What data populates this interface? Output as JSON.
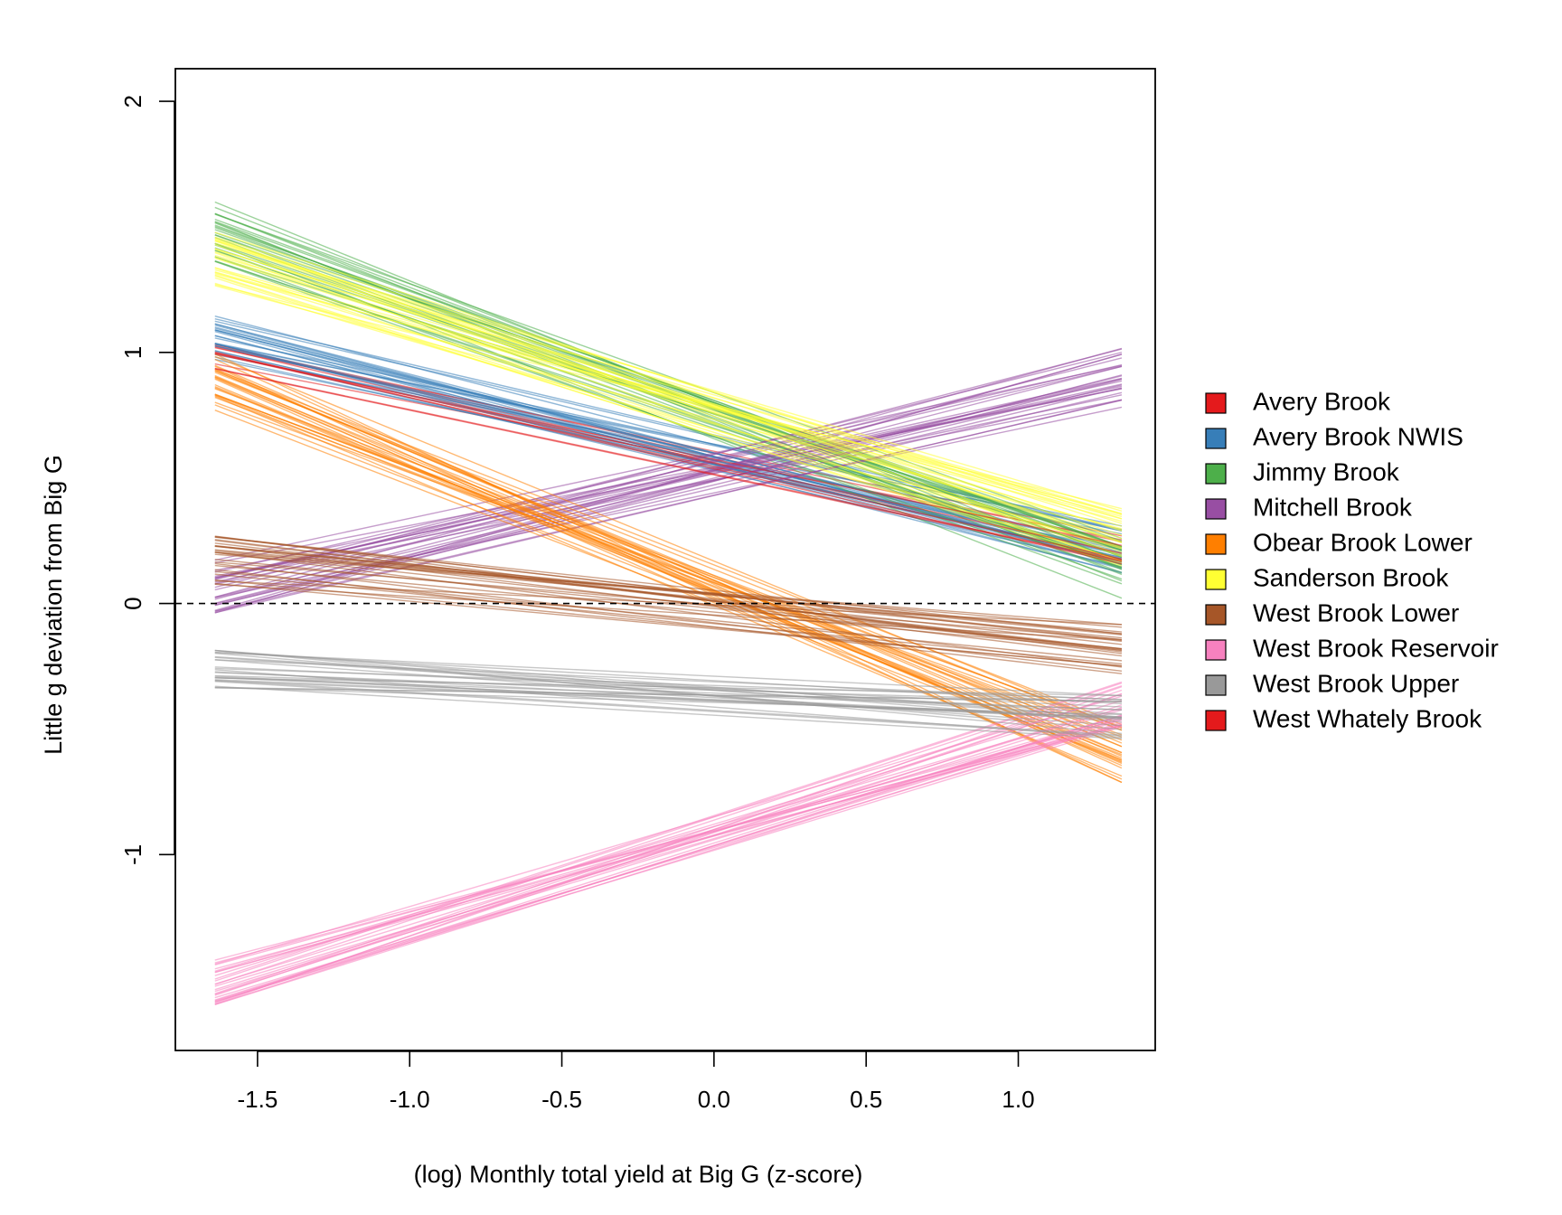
{
  "chart_data": {
    "type": "line",
    "xlabel": "(log) Monthly total yield at Big G (z-score)",
    "ylabel": "Little g deviation from Big G",
    "xlim": [
      -1.77,
      1.45
    ],
    "ylim": [
      -1.78,
      2.13
    ],
    "x_ticks": [
      "-1.5",
      "-1.0",
      "-0.5",
      "0.0",
      "0.5",
      "1.0"
    ],
    "x_tick_values": [
      -1.5,
      -1.0,
      -0.5,
      0.0,
      0.5,
      1.0
    ],
    "y_ticks": [
      "-1",
      "0",
      "1",
      "2"
    ],
    "y_tick_values": [
      -1,
      0,
      1,
      2
    ],
    "x_range": [
      -1.64,
      1.34
    ],
    "reference_line": {
      "y": 0,
      "style": "dashed"
    },
    "grid": false,
    "legend_position": "right",
    "series": [
      {
        "name": "Avery Brook",
        "color": "#E41A1C",
        "y_start": 1.0,
        "y_end": 0.2,
        "spread": 0.07,
        "draws": 6
      },
      {
        "name": "Avery Brook NWIS",
        "color": "#377EB8",
        "y_start": 1.05,
        "y_end": 0.22,
        "spread": 0.1,
        "draws": 28
      },
      {
        "name": "Jimmy Brook",
        "color": "#4DAF4A",
        "y_start": 1.48,
        "y_end": 0.14,
        "spread": 0.12,
        "draws": 28
      },
      {
        "name": "Mitchell Brook",
        "color": "#984EA3",
        "y_start": 0.06,
        "y_end": 0.9,
        "spread": 0.12,
        "draws": 28
      },
      {
        "name": "Obear Brook Lower",
        "color": "#FF7F00",
        "y_start": 0.88,
        "y_end": -0.6,
        "spread": 0.12,
        "draws": 28
      },
      {
        "name": "Sanderson Brook",
        "color": "#FFFF33",
        "y_start": 1.38,
        "y_end": 0.26,
        "spread": 0.12,
        "draws": 28
      },
      {
        "name": "West Brook Lower",
        "color": "#A65628",
        "y_start": 0.17,
        "y_end": -0.18,
        "spread": 0.1,
        "draws": 28
      },
      {
        "name": "West Brook Reservoir",
        "color": "#F781BF",
        "y_start": -1.5,
        "y_end": -0.4,
        "spread": 0.1,
        "draws": 28
      },
      {
        "name": "West Brook Upper",
        "color": "#999999",
        "y_start": -0.27,
        "y_end": -0.45,
        "spread": 0.09,
        "draws": 28
      },
      {
        "name": "West Whately Brook",
        "color": "#E41A1C",
        "y_start": 0.97,
        "y_end": 0.18,
        "spread": 0.06,
        "draws": 6
      }
    ]
  }
}
